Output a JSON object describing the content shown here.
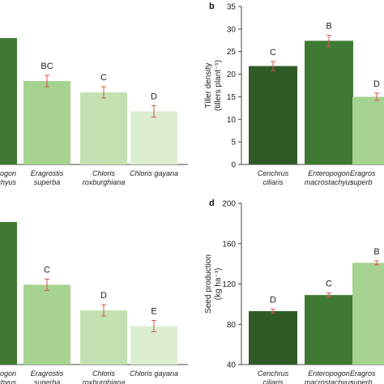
{
  "panels": [
    {
      "label": "",
      "ylabel": [],
      "cat_lines": [
        [
          "pogon",
          "tachyus"
        ],
        [
          "Eragrostis",
          "superba"
        ],
        [
          "Chloris",
          "roxburghiana"
        ],
        [
          "Chloris gayana"
        ]
      ],
      "sig": [
        "",
        "BC",
        "C",
        "D"
      ]
    },
    {
      "label": "b",
      "ylabel": [
        "Tiller density",
        "(tillers plant⁻¹)"
      ],
      "cat_lines": [
        [
          "Cenchrus",
          "ciliaris"
        ],
        [
          "Enteropogon",
          "macrostachyus"
        ],
        [
          "Eragros",
          "superb"
        ]
      ],
      "sig": [
        "C",
        "B",
        "D"
      ]
    },
    {
      "label": "",
      "ylabel": [],
      "cat_lines": [
        [
          "ogon",
          "achyus"
        ],
        [
          "Eragrostis",
          "superba"
        ],
        [
          "Chloris",
          "roxburghiana"
        ],
        [
          "Chloris gayana"
        ]
      ],
      "sig": [
        "",
        "C",
        "D",
        "E"
      ]
    },
    {
      "label": "d",
      "ylabel": [
        "Seed production",
        "(kg ha⁻¹)"
      ],
      "cat_lines": [
        [
          "Cenchrus",
          "ciliaris"
        ],
        [
          "Enteropogon",
          "macrostachyus"
        ],
        [
          "Eragros",
          "superb"
        ]
      ],
      "sig": [
        "D",
        "C",
        "B"
      ]
    }
  ],
  "chart_data": [
    {
      "type": "bar",
      "title": "",
      "categories": [
        "Enteropogon macrostachyus",
        "Eragrostis superba",
        "Chloris roxburghiana",
        "Chloris gayana"
      ],
      "y_axis": "not shown",
      "values": [
        1.0,
        0.66,
        0.57,
        0.42
      ],
      "value_note": "relative bar heights (axis cropped)",
      "significance": [
        "",
        "BC",
        "C",
        "D"
      ],
      "colors": [
        "#3f7a33",
        "#a6d38f",
        "#c4e1b2",
        "#dcedd0"
      ]
    },
    {
      "type": "bar",
      "title": "",
      "xlabel": "",
      "ylabel": "Tiller density (tillers plant⁻¹)",
      "categories": [
        "Cenchrus ciliaris",
        "Enteropogon macrostachyus",
        "Eragrostis superba"
      ],
      "values": [
        21.8,
        27.4,
        15.0
      ],
      "errors": [
        1.0,
        1.2,
        0.8
      ],
      "significance": [
        "C",
        "B",
        "D"
      ],
      "ylim": [
        0,
        35
      ],
      "yticks": [
        0,
        5,
        10,
        15,
        20,
        25,
        30,
        35
      ],
      "colors": [
        "#2f5c26",
        "#3f7a33",
        "#a6d38f"
      ]
    },
    {
      "type": "bar",
      "title": "",
      "categories": [
        "Enteropogon macrostachyus",
        "Eragrostis superba",
        "Chloris roxburghiana",
        "Chloris gayana"
      ],
      "y_axis": "not shown",
      "values": [
        1.0,
        0.56,
        0.38,
        0.27
      ],
      "value_note": "relative bar heights (axis cropped)",
      "significance": [
        "",
        "C",
        "D",
        "E"
      ],
      "colors": [
        "#3f7a33",
        "#a6d38f",
        "#c4e1b2",
        "#dcedd0"
      ]
    },
    {
      "type": "bar",
      "title": "",
      "xlabel": "",
      "ylabel": "Seed production (kg ha⁻¹)",
      "categories": [
        "Cenchrus ciliaris",
        "Enteropogon macrostachyus",
        "Eragrostis superba"
      ],
      "values": [
        93,
        109,
        141
      ],
      "errors": [
        2,
        2,
        2
      ],
      "significance": [
        "D",
        "C",
        "B"
      ],
      "ylim": [
        40,
        200
      ],
      "yticks": [
        40,
        80,
        120,
        160,
        200
      ],
      "colors": [
        "#2f5c26",
        "#3f7a33",
        "#a6d38f"
      ]
    }
  ]
}
